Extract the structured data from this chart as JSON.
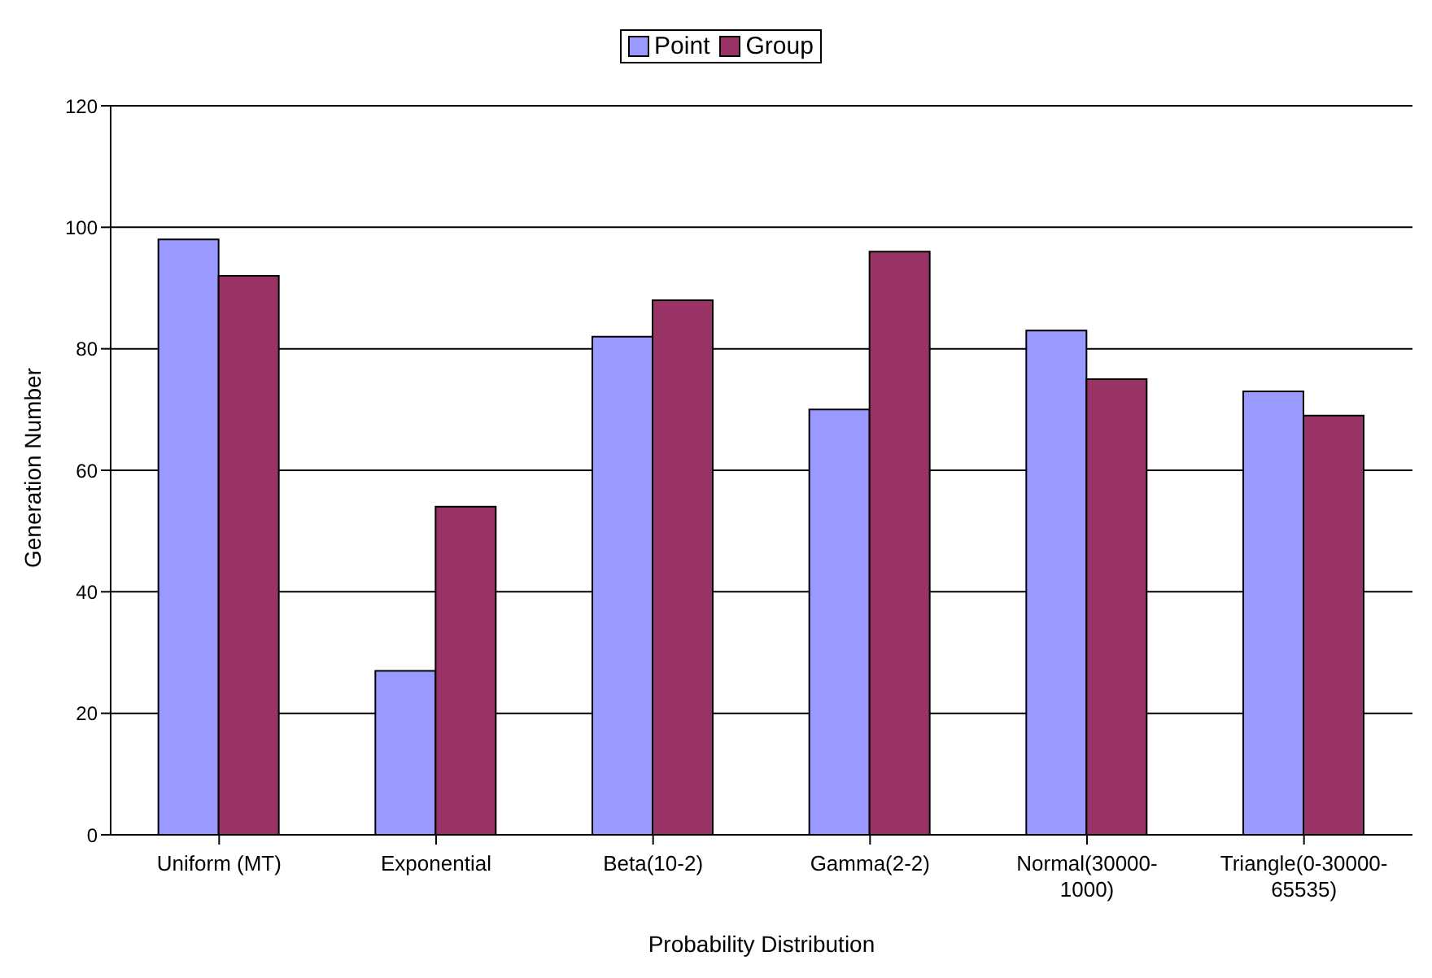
{
  "chart_data": {
    "type": "bar",
    "xlabel": "Probability Distribution",
    "ylabel": "Generation Number",
    "categories": [
      "Uniform (MT)",
      "Exponential",
      "Beta(10-2)",
      "Gamma(2-2)",
      "Normal(30000-1000)",
      "Triangle(0-30000-65535)"
    ],
    "series": [
      {
        "name": "Point",
        "color": "#9999ff",
        "values": [
          98,
          27,
          82,
          70,
          83,
          73
        ]
      },
      {
        "name": "Group",
        "color": "#993366",
        "values": [
          92,
          54,
          88,
          96,
          75,
          69
        ]
      }
    ],
    "ylim": [
      0,
      120
    ],
    "yticks": [
      0,
      20,
      40,
      60,
      80,
      100,
      120
    ],
    "grid": "y",
    "legend": "top"
  }
}
